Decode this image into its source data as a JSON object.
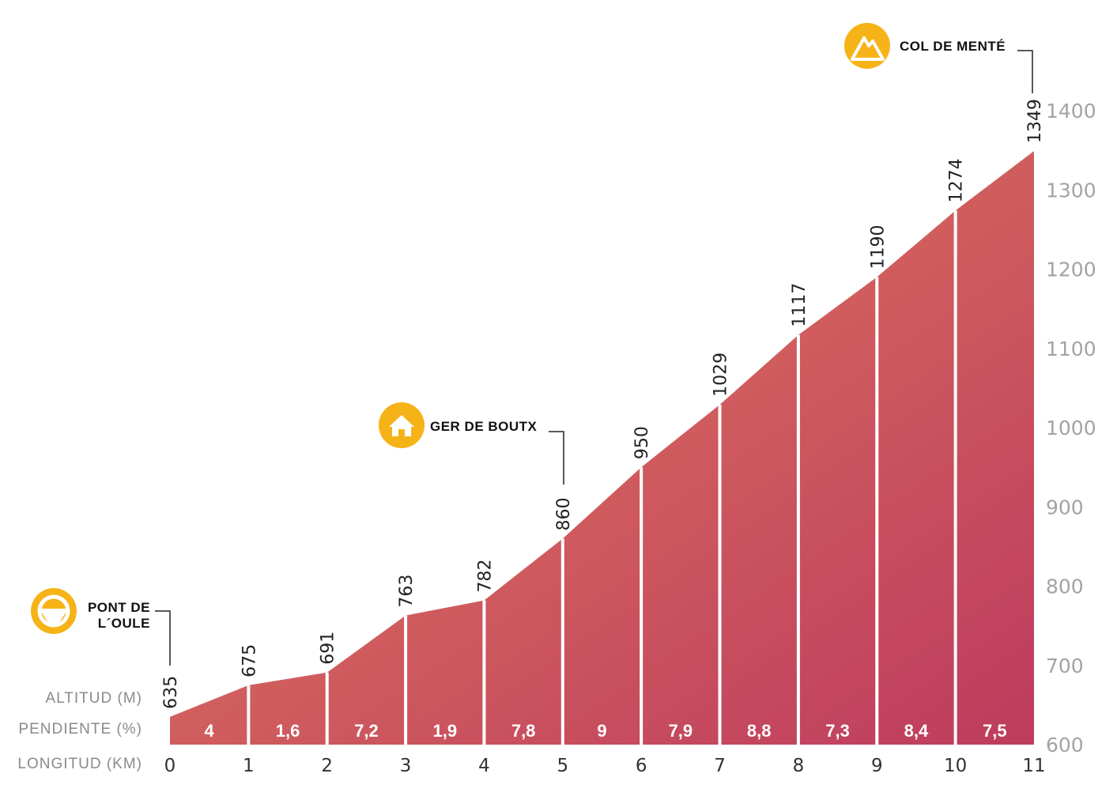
{
  "chart_data": {
    "type": "area",
    "xlabel": "LONGITUD (KM)",
    "ylabel": "ALTITUD (M)",
    "grade_label": "PENDIENTE (%)",
    "x": [
      0,
      1,
      2,
      3,
      4,
      5,
      6,
      7,
      8,
      9,
      10,
      11
    ],
    "x_tick_labels": [
      "0",
      "1",
      "2",
      "3",
      "4",
      "5",
      "6",
      "7",
      "8",
      "9",
      "10",
      "11"
    ],
    "altitudes": [
      635,
      675,
      691,
      763,
      782,
      860,
      950,
      1029,
      1117,
      1190,
      1274,
      1349
    ],
    "altitude_labels": [
      "635",
      "675",
      "691",
      "763",
      "782",
      "860",
      "950",
      "1029",
      "1117",
      "1190",
      "1274",
      "1349"
    ],
    "grades": [
      4,
      1.6,
      7.2,
      1.9,
      7.8,
      9,
      7.9,
      8.8,
      7.3,
      8.4,
      7.5
    ],
    "grade_labels": [
      "4",
      "1,6",
      "7,2",
      "1,9",
      "7,8",
      "9",
      "7,9",
      "8,8",
      "7,3",
      "8,4",
      "7,5"
    ],
    "ylim": [
      600,
      1400
    ],
    "y_ticks": [
      600,
      700,
      800,
      900,
      1000,
      1100,
      1200,
      1300,
      1400
    ],
    "y_tick_labels": [
      "600",
      "700",
      "800",
      "900",
      "1000",
      "1100",
      "1200",
      "1300",
      "1400"
    ],
    "xlim": [
      0,
      11
    ],
    "grid": false,
    "waypoints": [
      {
        "name_lines": [
          "PONT DE",
          "L´OULE"
        ],
        "km": 0,
        "icon": "steering-wheel-icon"
      },
      {
        "name_lines": [
          "GER DE BOUTX"
        ],
        "km": 5,
        "icon": "house-icon"
      },
      {
        "name_lines": [
          "COL DE MENTÉ"
        ],
        "km": 11,
        "icon": "mountain-icon"
      }
    ]
  },
  "colors": {
    "fill_start": "#e4805d",
    "fill_end": "#bd3b5e",
    "icon": "#f6b318",
    "divider": "#ffffff",
    "leader_line": "#222222"
  }
}
